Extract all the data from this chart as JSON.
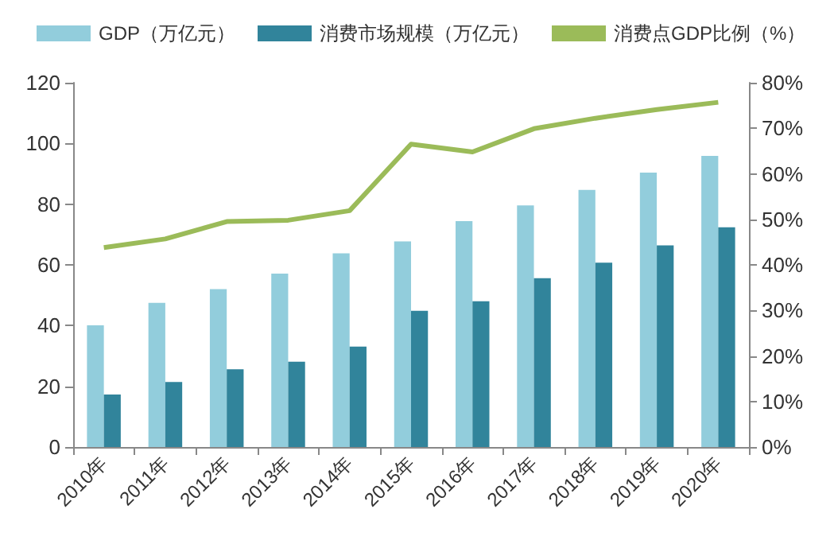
{
  "chart_data": {
    "type": "bar",
    "categories": [
      "2010年",
      "2011年",
      "2012年",
      "2013年",
      "2014年",
      "2015年",
      "2016年",
      "2017年",
      "2018年",
      "2019年",
      "2020年"
    ],
    "series": [
      {
        "name": "GDP（万亿元）",
        "color": "#92cddc",
        "values": [
          40.1,
          47.5,
          52,
          57.1,
          63.8,
          67.7,
          74.4,
          79.6,
          84.7,
          90.4,
          95.9
        ]
      },
      {
        "name": "消费市场规模（万亿元）",
        "color": "#31849b",
        "values": [
          17.3,
          21.4,
          25.6,
          28.1,
          33.1,
          44.9,
          48,
          55.6,
          60.7,
          66.4,
          72.4
        ]
      },
      {
        "name": "消费点GDP比例（%）",
        "type": "line",
        "axis": "y2",
        "color": "#9bbb59",
        "values": [
          43.8,
          45.7,
          49.5,
          49.8,
          51.9,
          66.5,
          64.8,
          69.9,
          72.2,
          74.1,
          75.7
        ]
      }
    ],
    "ylim": [
      0,
      120
    ],
    "yticks": [
      0,
      20,
      40,
      60,
      80,
      100,
      120
    ],
    "y2lim": [
      0,
      80
    ],
    "y2ticks": [
      {
        "value": 0,
        "label": "0%"
      },
      {
        "value": 10,
        "label": "10%"
      },
      {
        "value": 20,
        "label": "20%"
      },
      {
        "value": 30,
        "label": "30%"
      },
      {
        "value": 40,
        "label": "40%"
      },
      {
        "value": 50,
        "label": "50%"
      },
      {
        "value": 60,
        "label": "60%"
      },
      {
        "value": 70,
        "label": "70%"
      },
      {
        "value": 80,
        "label": "80%"
      }
    ],
    "grid": false,
    "legend": "top",
    "marker": "none"
  }
}
